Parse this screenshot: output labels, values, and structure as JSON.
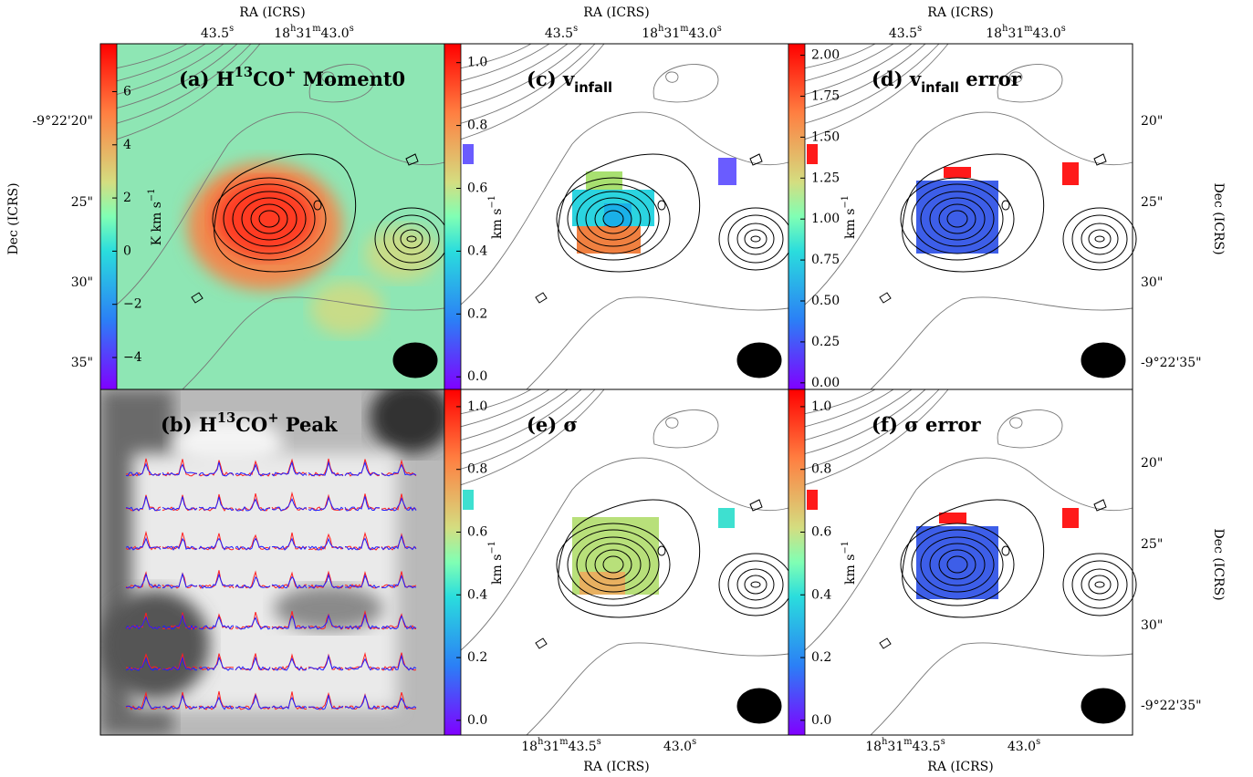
{
  "chart_data": [
    {
      "type": "map",
      "title": [
        {
          "text": "(a) H"
        },
        {
          "text": "13",
          "sup": true
        },
        {
          "text": "CO"
        },
        {
          "text": "+",
          "sup": true
        },
        {
          "text": " Moment0"
        }
      ],
      "colorbar": {
        "label": [
          {
            "text": "K km s"
          },
          {
            "text": "−1",
            "sup": true
          }
        ],
        "lim": [
          -5.2,
          7.8
        ],
        "ticks": [
          6,
          4,
          2,
          0,
          {
            "value": -2,
            "label": "−2"
          },
          {
            "value": -4,
            "label": "−4"
          }
        ]
      },
      "ra_axis": {
        "position": "top",
        "label": "RA (ICRS)",
        "ticks": [
          "43.5s",
          "18h31m43.0s"
        ]
      },
      "dec_axis": {
        "position": "left",
        "label": "Dec (ICRS)",
        "ticks": [
          "-9°22'20\"",
          "25\"",
          "30\"",
          "35\""
        ]
      }
    },
    {
      "type": "spectra",
      "title": [
        {
          "text": "(b) H"
        },
        {
          "text": "13",
          "sup": true
        },
        {
          "text": "CO"
        },
        {
          "text": "+",
          "sup": true
        },
        {
          "text": " Peak"
        }
      ]
    },
    {
      "type": "map",
      "title": [
        {
          "text": "(c) v"
        },
        {
          "text": "infall",
          "sub": true
        }
      ],
      "colorbar": {
        "label": [
          {
            "text": "km s"
          },
          {
            "text": "−1",
            "sup": true
          }
        ],
        "lim": [
          -0.04,
          1.06
        ],
        "ticks": [
          {
            "value": 1,
            "label": "1.0"
          },
          {
            "value": 0.8,
            "label": "0.8"
          },
          {
            "value": 0.6,
            "label": "0.6"
          },
          {
            "value": 0.4,
            "label": "0.4"
          },
          {
            "value": 0.2,
            "label": "0.2"
          },
          {
            "value": 0,
            "label": "0.0"
          }
        ]
      },
      "ra_axis": {
        "position": "top",
        "label": "RA (ICRS)",
        "ticks": [
          "43.5s",
          "18h31m43.0s"
        ]
      }
    },
    {
      "type": "map",
      "title": [
        {
          "text": "(d) v"
        },
        {
          "text": "infall",
          "sub": true
        },
        {
          "text": " error"
        }
      ],
      "colorbar": {
        "label": [
          {
            "text": "km s"
          },
          {
            "text": "−1",
            "sup": true
          }
        ],
        "lim": [
          -0.04,
          2.07
        ],
        "ticks": [
          {
            "value": 2,
            "label": "2.00"
          },
          {
            "value": 1.75,
            "label": "1.75"
          },
          {
            "value": 1.5,
            "label": "1.50"
          },
          {
            "value": 1.25,
            "label": "1.25"
          },
          {
            "value": 1,
            "label": "1.00"
          },
          {
            "value": 0.75,
            "label": "0.75"
          },
          {
            "value": 0.5,
            "label": "0.50"
          },
          {
            "value": 0.25,
            "label": "0.25"
          },
          {
            "value": 0,
            "label": "0.00"
          }
        ]
      },
      "ra_axis": {
        "position": "top",
        "label": "RA (ICRS)",
        "ticks": [
          "43.5s",
          "18h31m43.0s"
        ]
      },
      "dec_axis": {
        "position": "right",
        "label": "Dec (ICRS)",
        "ticks": [
          "20\"",
          "25\"",
          "30\"",
          "-9°22'35\""
        ]
      }
    },
    {
      "type": "map",
      "title": [
        {
          "text": "(e) σ"
        }
      ],
      "colorbar": {
        "label": [
          {
            "text": "km s"
          },
          {
            "text": "−1",
            "sup": true
          }
        ],
        "lim": [
          -0.047,
          1.055
        ],
        "ticks": [
          {
            "value": 1,
            "label": "1.0"
          },
          {
            "value": 0.8,
            "label": "0.8"
          },
          {
            "value": 0.6,
            "label": "0.6"
          },
          {
            "value": 0.4,
            "label": "0.4"
          },
          {
            "value": 0.2,
            "label": "0.2"
          },
          {
            "value": 0,
            "label": "0.0"
          }
        ]
      },
      "ra_axis": {
        "position": "bottom",
        "label": "RA (ICRS)",
        "ticks": [
          "18h31m43.5s",
          "43.0s"
        ]
      }
    },
    {
      "type": "map",
      "title": [
        {
          "text": "(f) σ error"
        }
      ],
      "colorbar": {
        "label": [
          {
            "text": "km s"
          },
          {
            "text": "−1",
            "sup": true
          }
        ],
        "lim": [
          -0.047,
          1.055
        ],
        "ticks": [
          {
            "value": 1,
            "label": "1.0"
          },
          {
            "value": 0.8,
            "label": "0.8"
          },
          {
            "value": 0.6,
            "label": "0.6"
          },
          {
            "value": 0.4,
            "label": "0.4"
          },
          {
            "value": 0.2,
            "label": "0.2"
          },
          {
            "value": 0,
            "label": "0.0"
          }
        ]
      },
      "ra_axis": {
        "position": "bottom",
        "label": "RA (ICRS)",
        "ticks": [
          "18h31m43.5s",
          "43.0s"
        ]
      },
      "dec_axis": {
        "position": "right",
        "label": "Dec (ICRS)",
        "ticks": [
          "20\"",
          "25\"",
          "30\"",
          "-9°22'35\""
        ]
      }
    }
  ]
}
